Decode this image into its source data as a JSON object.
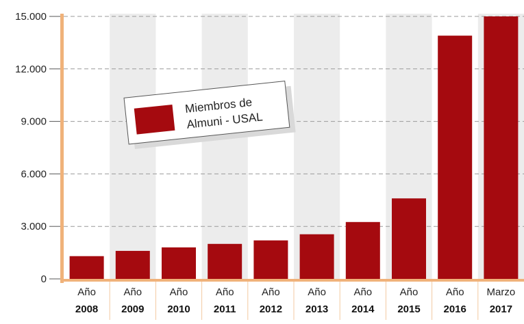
{
  "chart_data": {
    "type": "bar",
    "categories": [
      {
        "top": "Año",
        "bottom": "2008"
      },
      {
        "top": "Año",
        "bottom": "2009"
      },
      {
        "top": "Año",
        "bottom": "2010"
      },
      {
        "top": "Año",
        "bottom": "2011"
      },
      {
        "top": "Año",
        "bottom": "2012"
      },
      {
        "top": "Año",
        "bottom": "2013"
      },
      {
        "top": "Año",
        "bottom": "2014"
      },
      {
        "top": "Año",
        "bottom": "2015"
      },
      {
        "top": "Año",
        "bottom": "2016"
      },
      {
        "top": "Marzo",
        "bottom": "2017"
      }
    ],
    "series": [
      {
        "name": "Miembros de Almuni - USAL",
        "values": [
          1300,
          1600,
          1800,
          2000,
          2200,
          2550,
          3250,
          4600,
          13900,
          15000
        ]
      }
    ],
    "yticks": [
      "0",
      "3.000",
      "6.000",
      "9.000",
      "12.000",
      "15.000"
    ],
    "ytick_values": [
      0,
      3000,
      6000,
      9000,
      12000,
      15000
    ],
    "ylim": [
      0,
      15000
    ],
    "legend": {
      "line1": "Miembros de",
      "line2": "Almuni - USAL",
      "placement": "top-left"
    },
    "grid": true,
    "colors": {
      "bar": "#a50a0f",
      "axis": "#f0b27a",
      "band": "#ececec",
      "grid": "#999999"
    }
  }
}
